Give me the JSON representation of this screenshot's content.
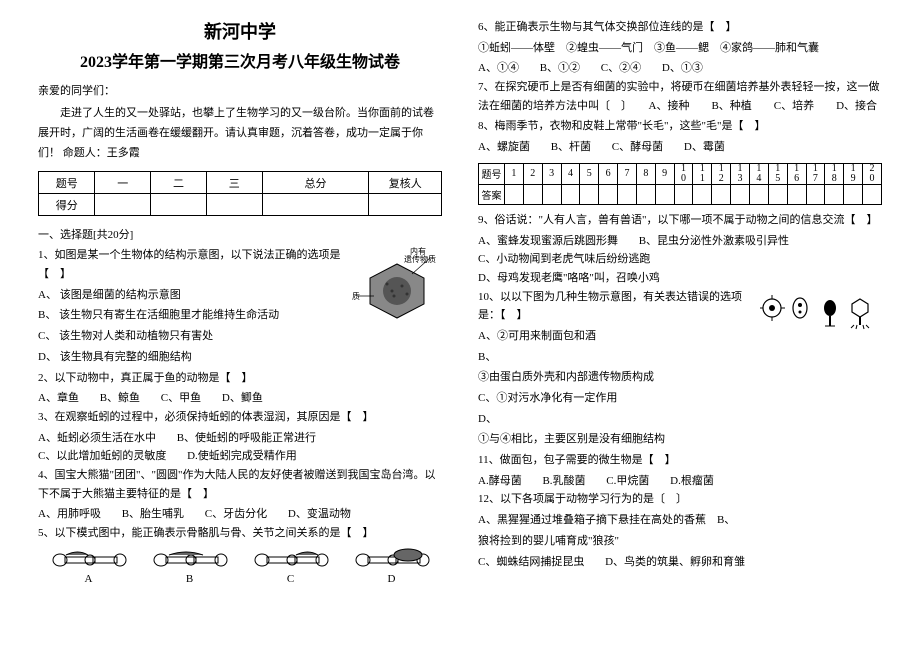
{
  "header": {
    "school": "新河中学",
    "exam_title": "2023学年第一学期第三次月考八年级生物试卷"
  },
  "greeting": "亲爱的同学们：",
  "intro": "走进了人生的又一处驿站，也攀上了生物学习的又一级台阶。当你面前的试卷展开时，广阔的生活画卷在缓缓翻开。请认真审题，沉着答卷，成功一定属于你们！ 命题人：王多霞",
  "score_table": {
    "r1": [
      "题号",
      "一",
      "二",
      "三",
      "总分",
      "复核人"
    ],
    "r2": [
      "得分",
      "",
      "",
      "",
      "",
      ""
    ]
  },
  "section1": "一、选择题[共20分]",
  "q1": {
    "stem": "1、如图是某一个生物体的结构示意图，以下说法正确的选项是【　】",
    "a": "A、 该图是细菌的结构示意图",
    "b": "B、 该生物只有寄生在活细胞里才能维持生命活动",
    "c": "C、 该生物对人类和动植物只有害处",
    "d": "D、 该生物具有完整的细胞结构",
    "label1": "内有遗传物质",
    "label2": "蛋白质"
  },
  "q2": {
    "stem": "2、以下动物中，真正属于鱼的动物是【　】",
    "a": "A、章鱼",
    "b": "B、鲸鱼",
    "c": "C、甲鱼",
    "d": "D、鲫鱼"
  },
  "q3": {
    "stem": "3、在观察蚯蚓的过程中，必须保持蚯蚓的体表湿润，其原因是【　】",
    "a": "A、蚯蚓必须生活在水中",
    "b": "B、使蚯蚓的呼吸能正常进行",
    "c": "C、以此增加蚯蚓的灵敏度",
    "d": "D.使蚯蚓完成受精作用"
  },
  "q4": {
    "stem": "4、国宝大熊猫\"团团\"、\"圆圆\"作为大陆人民的友好使者被赠送到我国宝岛台湾。以下不属于大熊猫主要特征的是【　】",
    "a": "A、用肺呼吸",
    "b": "B、胎生哺乳",
    "c": "C、牙齿分化",
    "d": "D、变温动物"
  },
  "q5": {
    "stem": "5、以下模式图中，能正确表示骨骼肌与骨、关节之间关系的是【　】",
    "labels": [
      "A",
      "B",
      "C",
      "D"
    ]
  },
  "q6": {
    "stem": "6、能正确表示生物与其气体交换部位连线的是【　】",
    "line": "①蚯蚓——体壁　②蝗虫——气门　③鱼——鳃　④家鸽——肺和气囊",
    "a": "A、①④",
    "b": "B、①②",
    "c": "C、②④",
    "d": "D、①③"
  },
  "q7": {
    "stem": "7、在探究硬币上是否有细菌的实验中，将硬币在细菌培养基外表轻轻一按，这一做法在细菌的培养方法中叫〔　〕　　A、接种　　B、种植　　C、培养　　D、接合"
  },
  "q8": {
    "stem": "8、梅雨季节，衣物和皮鞋上常带\"长毛\"，这些\"毛\"是【　】",
    "a": "A、螺旋菌",
    "b": "B、杆菌",
    "c": "C、酵母菌",
    "d": "D、霉菌"
  },
  "ans_table": {
    "lbl1": "题号",
    "lbl2": "答案"
  },
  "q9": {
    "stem": "9、俗话说：\"人有人言，兽有兽语\"，以下哪一项不属于动物之间的信息交流【　】",
    "a": "A、蜜蜂发现蜜源后跳圆形舞",
    "b": "B、昆虫分泌性外激素吸引异性",
    "c": "C、小动物闻到老虎气味后纷纷逃跑",
    "d": "D、母鸡发现老鹰\"咯咯\"叫，召唤小鸡"
  },
  "q10": {
    "stem": "10、以以下图为几种生物示意图，有关表达错误的选项是：【　】",
    "a": "A、②可用来制面包和酒",
    "b": "B、",
    "c": "③由蛋白质外壳和内部遗传物质构成",
    "d": "C、①对污水净化有一定作用",
    "e": "D、",
    "f": "①与④相比，主要区别是没有细胞结构"
  },
  "q11": {
    "stem": "11、做面包，包子需要的微生物是【　】",
    "a": "A.酵母菌",
    "b": "B.乳酸菌",
    "c": "C.甲烷菌",
    "d": "D.根瘤菌"
  },
  "q12": {
    "stem": "12、以下各项属于动物学习行为的是〔　〕",
    "a": "A、黑猩猩通过堆叠箱子摘下悬挂在高处的香蕉　B、",
    "b": "狼将捡到的婴儿哺育成\"狼孩\"",
    "c": "C、蜘蛛结网捕捉昆虫",
    "d": "D、鸟类的筑巢、孵卵和育雏"
  },
  "colors": {
    "text": "#000000",
    "bg": "#ffffff",
    "border": "#000000"
  }
}
